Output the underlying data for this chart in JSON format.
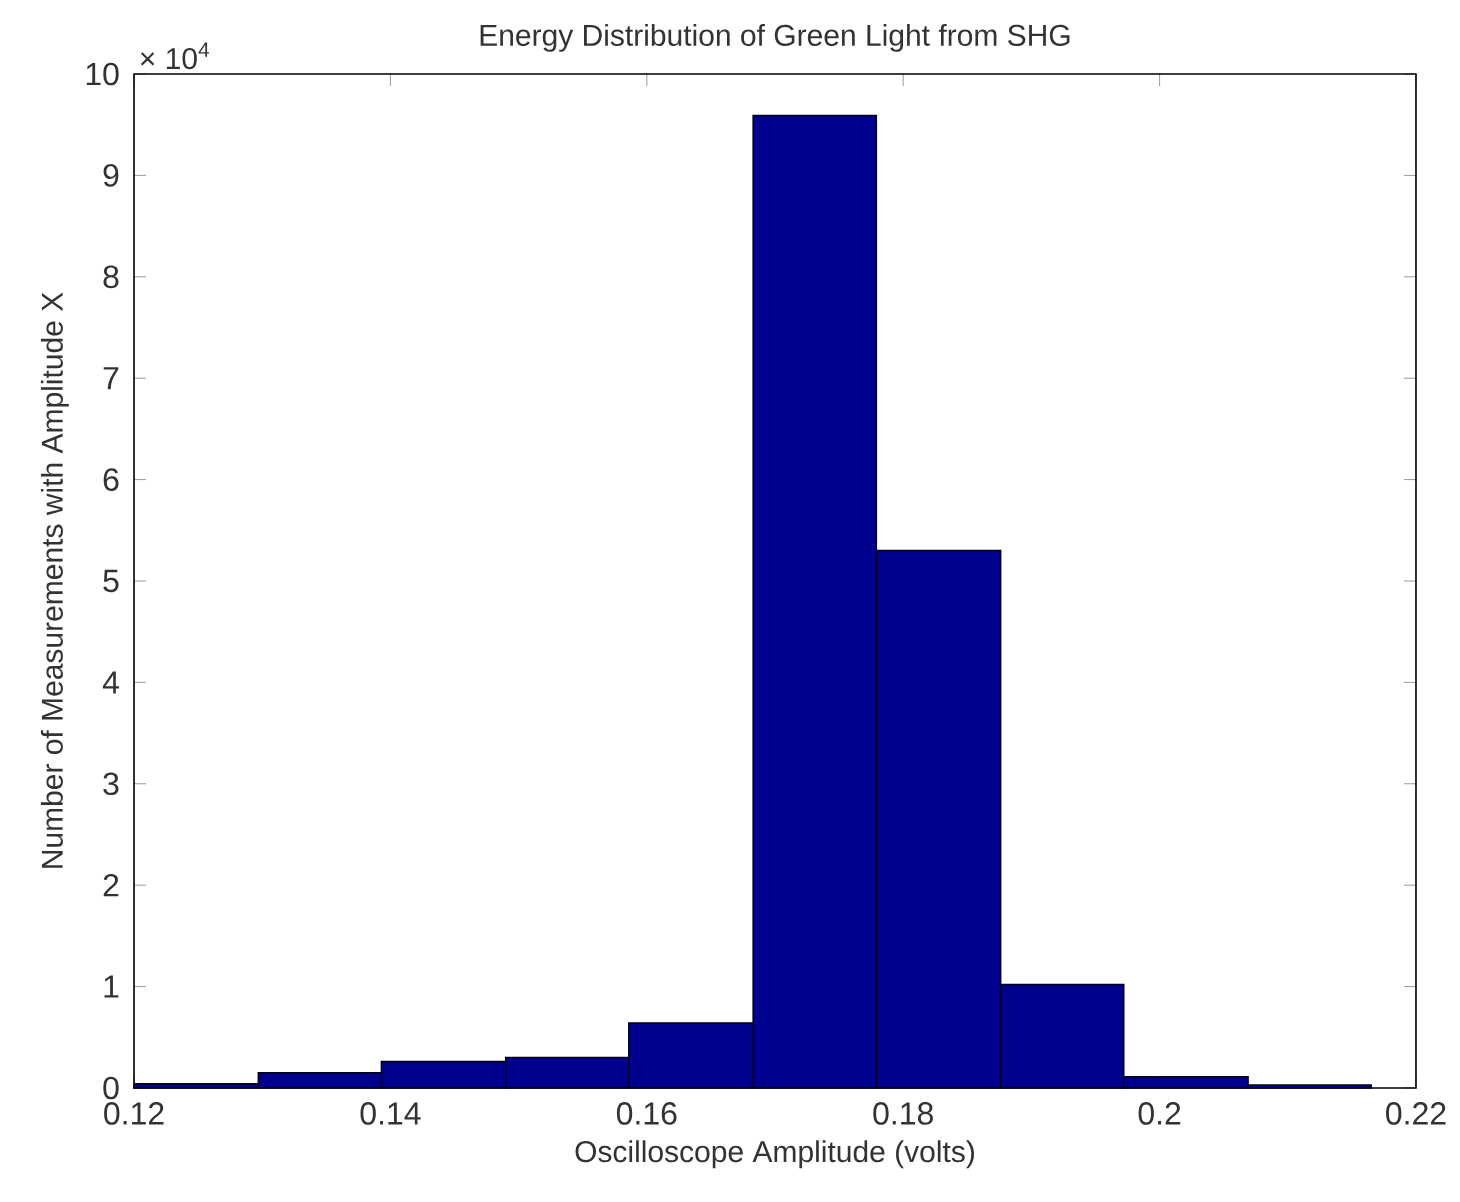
{
  "chart_data": {
    "type": "histogram",
    "title": "Energy Distribution of Green Light from SHG",
    "xlabel": "Oscilloscope Amplitude (volts)",
    "ylabel": "Number of Measurements with Amplitude X",
    "bins": [
      0.12,
      0.1297,
      0.1393,
      0.149,
      0.1586,
      0.1683,
      0.1779,
      0.1876,
      0.1972,
      0.2069,
      0.2165
    ],
    "values": [
      0.04,
      0.15,
      0.26,
      0.3,
      0.64,
      9.59,
      5.3,
      1.02,
      0.11,
      0.03
    ],
    "color": "#00008f",
    "xlim": [
      0.12,
      0.22
    ],
    "xticks": [
      0.12,
      0.14,
      0.16,
      0.18,
      0.2,
      0.22
    ],
    "ylim": [
      0,
      10
    ],
    "yticks": [
      0,
      1,
      2,
      3,
      4,
      5,
      6,
      7,
      8,
      9,
      10
    ],
    "annotations": [
      "× 10$^{4}$"
    ],
    "grid": false
  }
}
